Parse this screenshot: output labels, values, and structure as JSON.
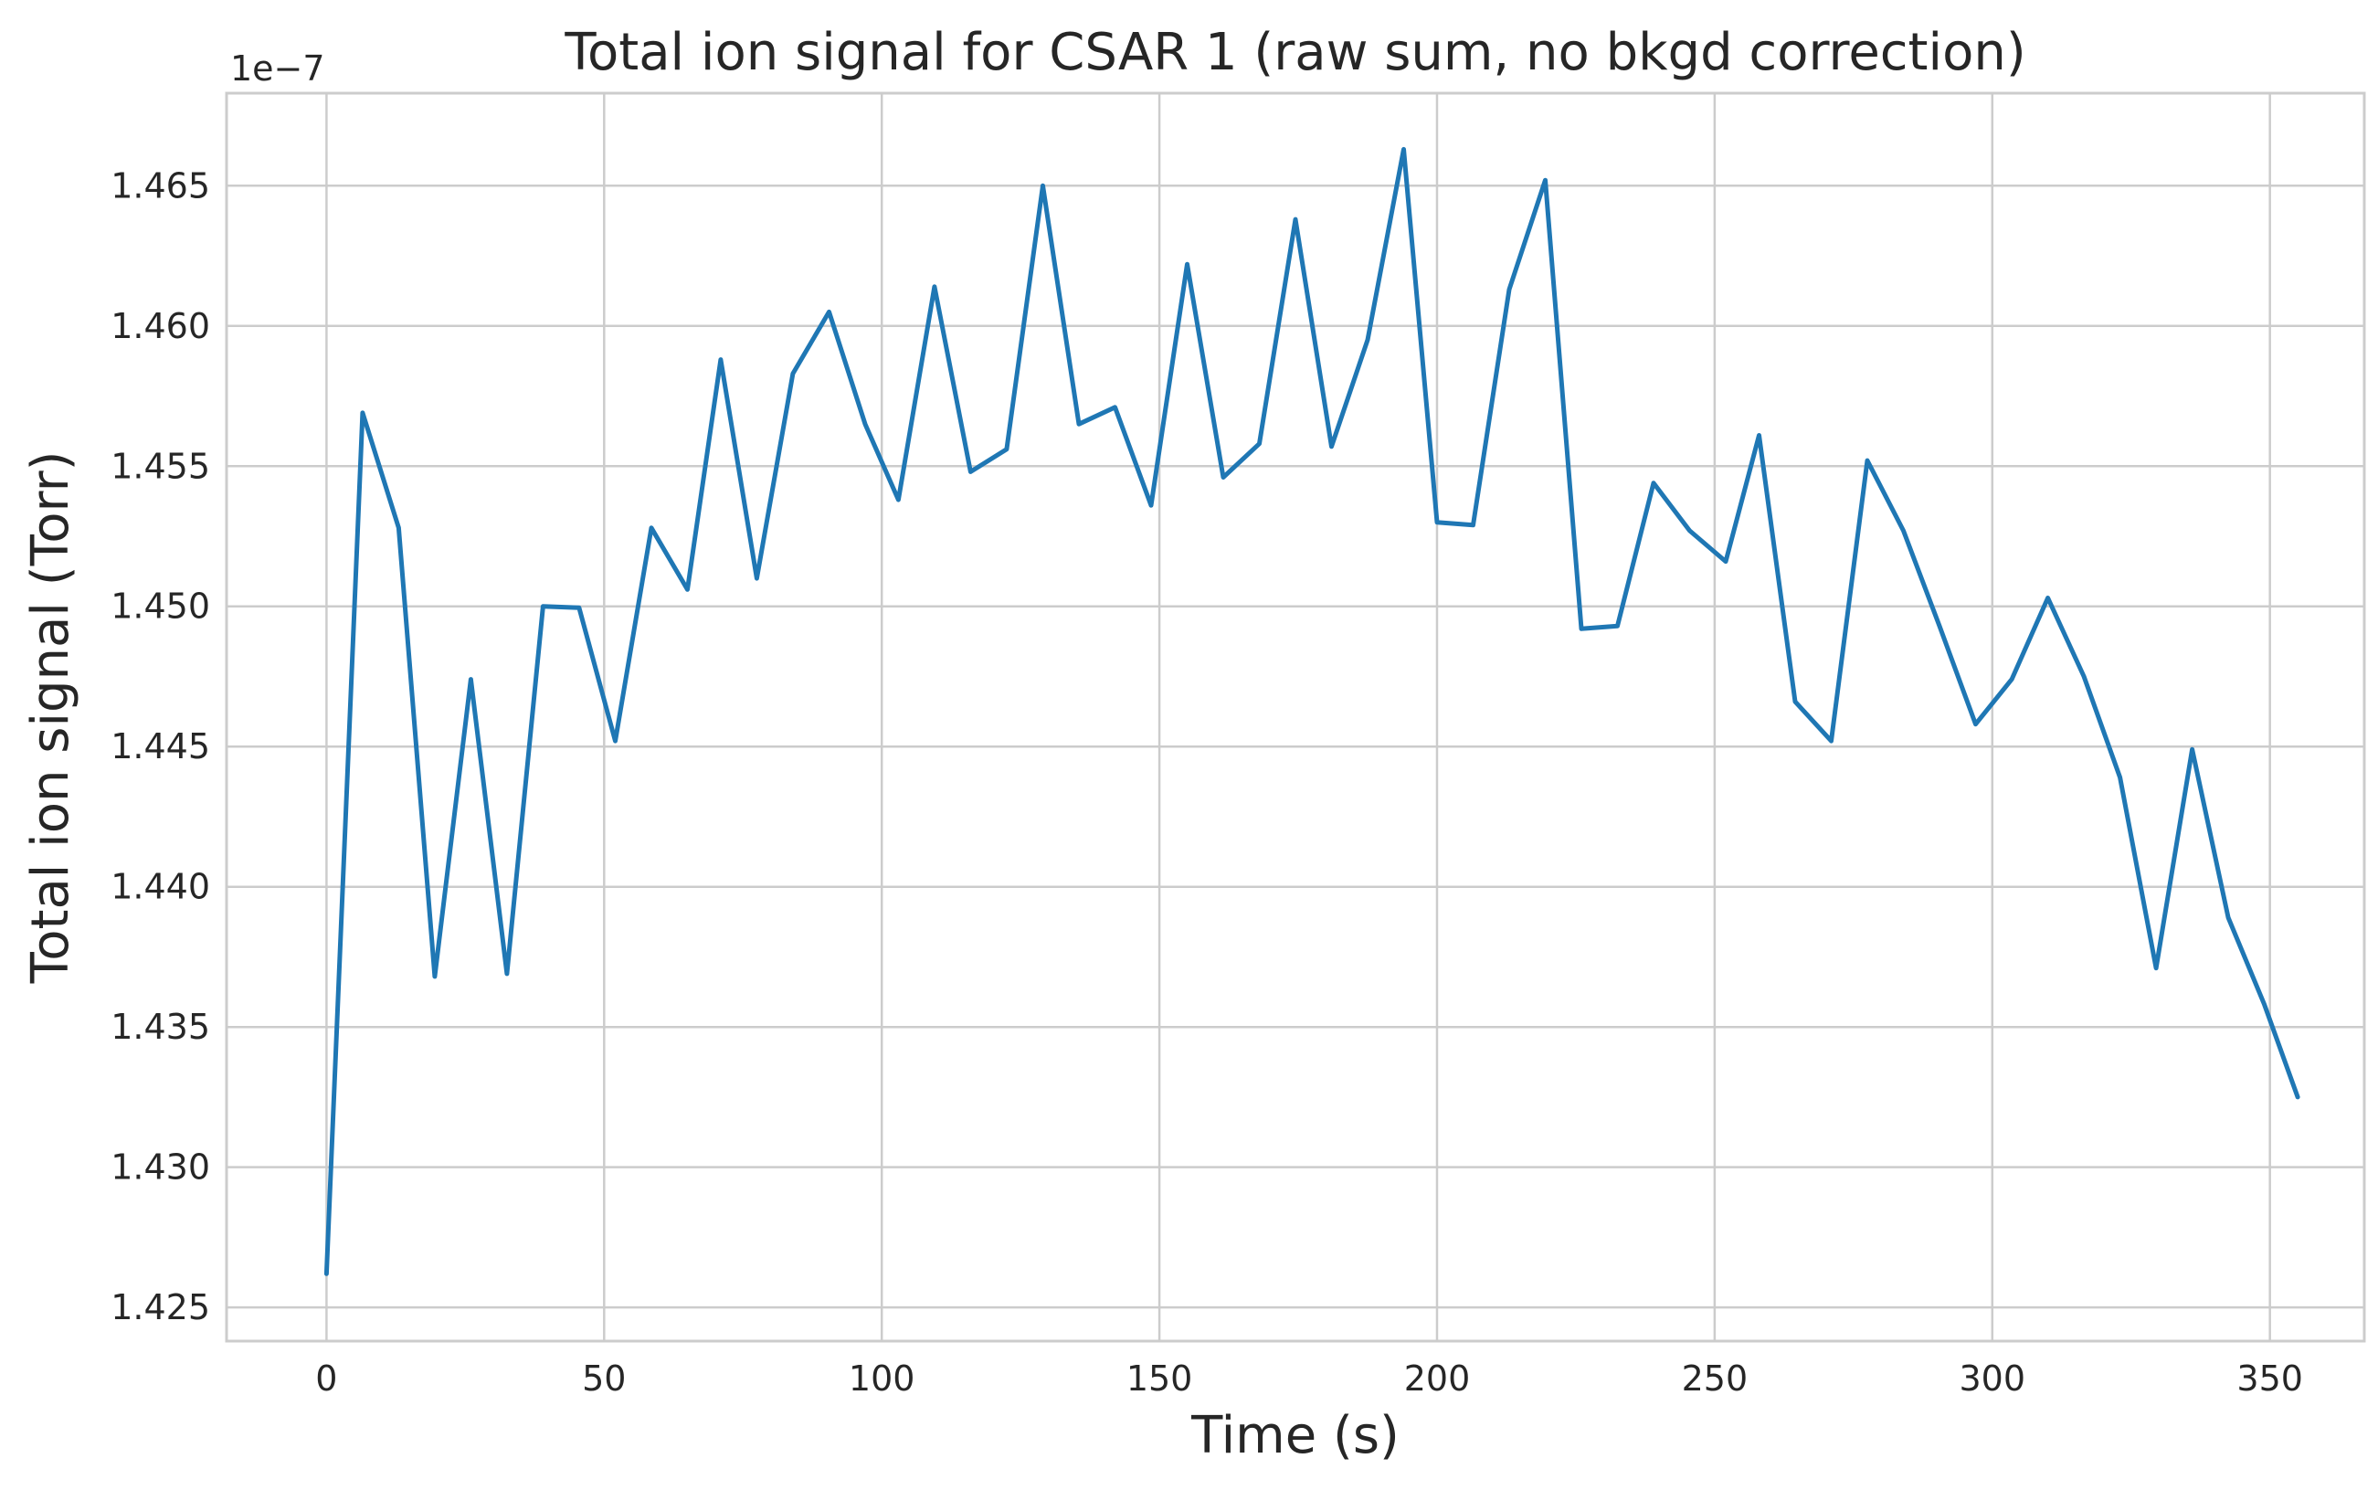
{
  "chart_data": {
    "type": "line",
    "title": "Total ion signal for CSAR 1 (raw sum, no bkgd correction)",
    "xlabel": "Time (s)",
    "ylabel": "Total ion signal (Torr)",
    "y_offset_label": "1e−7",
    "xlim": [
      -18,
      367
    ],
    "ylim": [
      1.4238,
      1.4683
    ],
    "x_ticks": [
      0,
      50,
      100,
      150,
      200,
      250,
      300,
      350
    ],
    "x_tick_labels": [
      "0",
      "50",
      "100",
      "150",
      "200",
      "250",
      "300",
      "350"
    ],
    "y_ticks": [
      1.425,
      1.43,
      1.435,
      1.44,
      1.445,
      1.45,
      1.455,
      1.46,
      1.465
    ],
    "y_tick_labels": [
      "1.425",
      "1.430",
      "1.435",
      "1.440",
      "1.445",
      "1.450",
      "1.455",
      "1.460",
      "1.465"
    ],
    "grid": true,
    "legend": "none",
    "series": [
      {
        "color": "#1f77b4",
        "x": [
          0,
          6.5,
          13,
          19.5,
          26,
          32.5,
          39,
          45.5,
          52,
          58.5,
          65,
          71,
          77.5,
          84,
          90.5,
          97,
          103,
          109.5,
          116,
          122.5,
          129,
          135.5,
          142,
          148.5,
          155,
          161.5,
          168,
          174.5,
          181,
          187.5,
          194,
          200,
          206.5,
          213,
          219.5,
          226,
          232.5,
          239,
          245.5,
          252,
          258,
          264.5,
          271,
          277.5,
          284,
          290.5,
          297,
          303.5,
          310,
          316.5,
          323,
          329.5,
          336,
          342.5,
          349,
          355
        ],
        "y": [
          1.4262,
          1.4569,
          1.4528,
          1.4368,
          1.4474,
          1.4369,
          1.45,
          1.44995,
          1.4452,
          1.4528,
          1.4506,
          1.4588,
          1.451,
          1.4583,
          1.4605,
          1.4565,
          1.4538,
          1.4614,
          1.4548,
          1.4556,
          1.465,
          1.4565,
          1.4571,
          1.4536,
          1.4622,
          1.4546,
          1.4558,
          1.4638,
          1.4557,
          1.4595,
          1.4663,
          1.453,
          1.4529,
          1.4613,
          1.4652,
          1.4492,
          1.4493,
          1.4544,
          1.4527,
          1.4516,
          1.4561,
          1.4466,
          1.4452,
          1.4552,
          1.4527,
          1.4493,
          1.4458,
          1.4474,
          1.4503,
          1.4475,
          1.4439,
          1.4371,
          1.4449,
          1.4389,
          1.4358,
          1.4325
        ]
      }
    ]
  }
}
